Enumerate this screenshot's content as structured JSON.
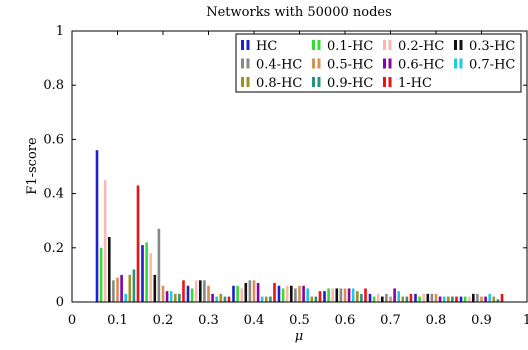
{
  "chart_data": {
    "type": "bar",
    "title": "Networks with 50000 nodes",
    "xlabel": "μ",
    "ylabel": "F1-score",
    "xlim": [
      0,
      1
    ],
    "ylim": [
      0,
      1
    ],
    "grid": false,
    "legend_position": "top-right",
    "x_ticks": [
      0,
      0.1,
      0.2,
      0.3,
      0.4,
      0.5,
      0.6,
      0.7,
      0.8,
      0.9,
      1
    ],
    "x_tick_labels": [
      "0",
      "0.1",
      "0.2",
      "0.3",
      "0.4",
      "0.5",
      "0.6",
      "0.7",
      "0.8",
      "0.9",
      "1"
    ],
    "y_ticks": [
      0,
      0.2,
      0.4,
      0.6,
      0.8,
      1
    ],
    "y_tick_labels": [
      "0",
      "0.2",
      "0.4",
      "0.6",
      "0.8",
      "1"
    ],
    "x": [
      0.1,
      0.2,
      0.3,
      0.4,
      0.5,
      0.6,
      0.7,
      0.8,
      0.9
    ],
    "series": [
      {
        "name": "HC",
        "color": "#1f1fd0",
        "values": [
          0.56,
          0.21,
          0.06,
          0.06,
          0.06,
          0.04,
          0.03,
          0.03,
          0.02
        ]
      },
      {
        "name": "0.1-HC",
        "color": "#33dd33",
        "values": [
          0.2,
          0.22,
          0.05,
          0.06,
          0.05,
          0.05,
          0.02,
          0.02,
          0.02
        ]
      },
      {
        "name": "0.2-HC",
        "color": "#ffb6b0",
        "values": [
          0.45,
          0.18,
          0.08,
          0.05,
          0.06,
          0.05,
          0.03,
          0.03,
          0.02
        ]
      },
      {
        "name": "0.3-HC",
        "color": "#111111",
        "values": [
          0.24,
          0.1,
          0.08,
          0.07,
          0.06,
          0.05,
          0.02,
          0.03,
          0.03
        ]
      },
      {
        "name": "0.4-HC",
        "color": "#888888",
        "values": [
          0.08,
          0.27,
          0.08,
          0.08,
          0.05,
          0.05,
          0.03,
          0.03,
          0.03
        ]
      },
      {
        "name": "0.5-HC",
        "color": "#d89050",
        "values": [
          0.09,
          0.06,
          0.06,
          0.08,
          0.06,
          0.05,
          0.02,
          0.03,
          0.02
        ]
      },
      {
        "name": "0.6-HC",
        "color": "#8800aa",
        "values": [
          0.1,
          0.04,
          0.03,
          0.07,
          0.06,
          0.05,
          0.05,
          0.02,
          0.02
        ]
      },
      {
        "name": "0.7-HC",
        "color": "#22c8e0",
        "values": [
          0.03,
          0.04,
          0.02,
          0.02,
          0.05,
          0.05,
          0.04,
          0.02,
          0.03
        ]
      },
      {
        "name": "0.8-HC",
        "color": "#a09020",
        "values": [
          0.1,
          0.03,
          0.03,
          0.02,
          0.02,
          0.04,
          0.02,
          0.02,
          0.02
        ]
      },
      {
        "name": "0.9-HC",
        "color": "#2a9080",
        "values": [
          0.12,
          0.03,
          0.02,
          0.02,
          0.02,
          0.03,
          0.02,
          0.02,
          0.01
        ]
      },
      {
        "name": "1-HC",
        "color": "#ee1111",
        "values": [
          0.43,
          0.08,
          0.02,
          0.07,
          0.04,
          0.05,
          0.03,
          0.02,
          0.03
        ]
      }
    ]
  }
}
